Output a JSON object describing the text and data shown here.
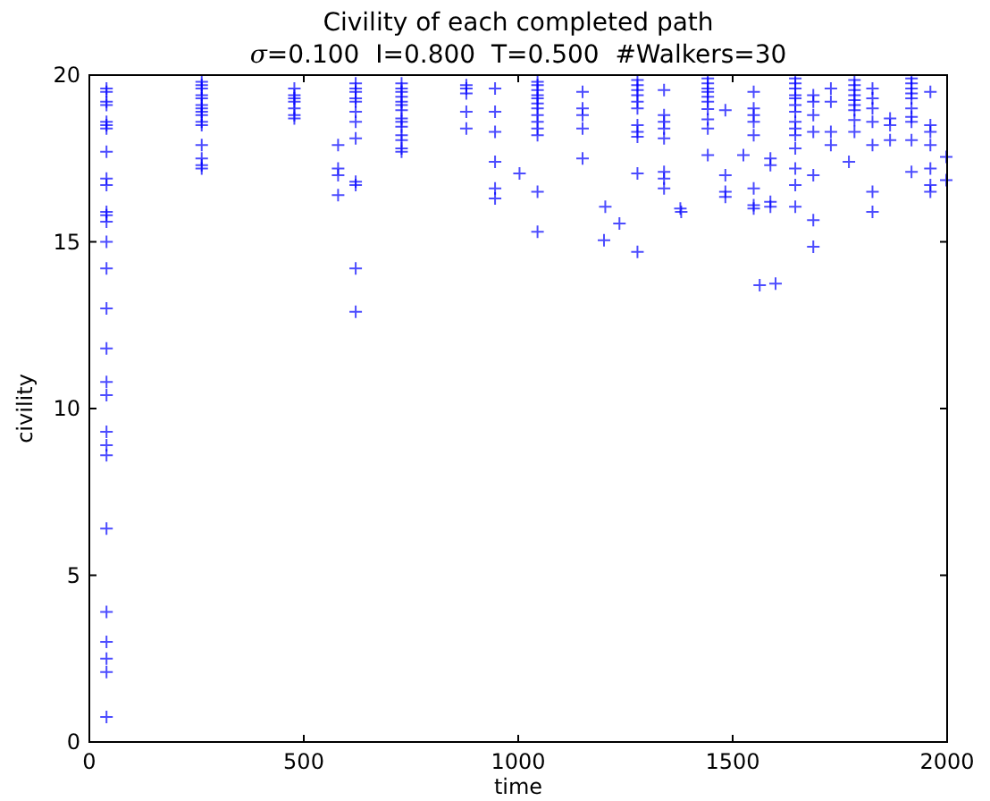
{
  "chart_data": {
    "type": "scatter",
    "title": "Civility of each completed path",
    "subtitle": "σ=0.100  I=0.800  T=0.500  #Walkers=30",
    "xlabel": "time",
    "ylabel": "civility",
    "xlim": [
      0,
      2000
    ],
    "xticks": [
      0,
      500,
      1000,
      1500,
      2000
    ],
    "ylim": [
      0,
      20
    ],
    "yticks": [
      0,
      5,
      10,
      15,
      20
    ],
    "grid": false,
    "marker": "cross",
    "series": [
      {
        "color": "#0000ff",
        "x": [
          40,
          40,
          40,
          40,
          40,
          40,
          40,
          40,
          40,
          40,
          40,
          40,
          40,
          40,
          40,
          40,
          40,
          40,
          40,
          40,
          40,
          40,
          40,
          40,
          40,
          40,
          40,
          40,
          262,
          262,
          262,
          262,
          262,
          262,
          262,
          262,
          262,
          262,
          262,
          262,
          262,
          262,
          262,
          478,
          478,
          478,
          478,
          478,
          478,
          478,
          580,
          580,
          580,
          580,
          621,
          621,
          621,
          621,
          621,
          621,
          621,
          621,
          621,
          621,
          621,
          621,
          728,
          728,
          728,
          728,
          728,
          728,
          728,
          728,
          728,
          728,
          728,
          728,
          728,
          728,
          879,
          879,
          879,
          879,
          879,
          946,
          946,
          946,
          946,
          946,
          946,
          1003,
          1045,
          1045,
          1045,
          1045,
          1045,
          1045,
          1045,
          1045,
          1045,
          1045,
          1045,
          1045,
          1045,
          1150,
          1150,
          1150,
          1150,
          1150,
          1203,
          1200,
          1236,
          1278,
          1278,
          1278,
          1278,
          1278,
          1278,
          1278,
          1278,
          1278,
          1278,
          1278,
          1340,
          1340,
          1340,
          1340,
          1340,
          1340,
          1340,
          1340,
          1378,
          1380,
          1442,
          1442,
          1442,
          1442,
          1442,
          1442,
          1442,
          1442,
          1442,
          1442,
          1483,
          1483,
          1483,
          1483,
          1525,
          1549,
          1549,
          1549,
          1549,
          1549,
          1549,
          1549,
          1549,
          1563,
          1600,
          1588,
          1588,
          1588,
          1588,
          1646,
          1646,
          1646,
          1646,
          1646,
          1646,
          1646,
          1646,
          1646,
          1646,
          1646,
          1646,
          1646,
          1646,
          1688,
          1688,
          1688,
          1688,
          1688,
          1688,
          1688,
          1729,
          1729,
          1729,
          1729,
          1771,
          1784,
          1784,
          1784,
          1784,
          1784,
          1784,
          1784,
          1784,
          1784,
          1826,
          1826,
          1826,
          1826,
          1826,
          1826,
          1826,
          1867,
          1867,
          1867,
          1917,
          1917,
          1917,
          1917,
          1917,
          1917,
          1917,
          1917,
          1917,
          1917,
          1961,
          1961,
          1961,
          1961,
          1961,
          1961,
          1961,
          1998,
          1998
        ],
        "values": [
          19.6,
          19.5,
          19.2,
          19.1,
          18.6,
          18.5,
          18.4,
          17.7,
          16.9,
          16.7,
          15.9,
          15.8,
          15.6,
          15.0,
          14.2,
          13.0,
          11.8,
          10.8,
          10.4,
          9.3,
          8.9,
          8.6,
          6.4,
          3.9,
          3.0,
          2.5,
          2.1,
          0.75,
          19.8,
          19.7,
          19.6,
          19.4,
          19.3,
          19.1,
          19.0,
          18.9,
          18.8,
          18.6,
          18.5,
          17.9,
          17.5,
          17.3,
          17.2,
          19.6,
          19.4,
          19.3,
          19.2,
          19.0,
          18.8,
          18.7,
          17.9,
          17.2,
          17.0,
          16.4,
          19.75,
          19.6,
          19.5,
          19.3,
          19.2,
          18.9,
          18.6,
          18.1,
          16.8,
          16.7,
          14.2,
          12.9,
          19.75,
          19.6,
          19.5,
          19.35,
          19.2,
          19.1,
          18.95,
          18.7,
          18.6,
          18.45,
          18.2,
          18.05,
          17.8,
          17.7,
          19.7,
          19.6,
          19.45,
          18.9,
          18.4,
          19.6,
          18.9,
          18.3,
          17.4,
          16.6,
          16.3,
          17.05,
          19.8,
          19.7,
          19.55,
          19.4,
          19.3,
          19.15,
          19.0,
          18.8,
          18.6,
          18.4,
          18.2,
          16.5,
          15.3,
          19.5,
          19.0,
          18.8,
          18.4,
          17.5,
          16.05,
          15.05,
          15.55,
          19.85,
          19.7,
          19.55,
          19.4,
          19.2,
          19.0,
          18.5,
          18.3,
          18.15,
          17.05,
          14.7,
          19.55,
          18.8,
          18.6,
          18.4,
          18.1,
          17.1,
          16.9,
          16.6,
          16.0,
          15.9,
          19.9,
          19.75,
          19.6,
          19.5,
          19.35,
          19.2,
          18.98,
          18.67,
          18.4,
          17.6,
          18.95,
          17.0,
          16.5,
          16.35,
          17.6,
          19.5,
          19.0,
          18.8,
          18.6,
          18.2,
          16.6,
          16.1,
          16.0,
          13.7,
          13.75,
          17.5,
          17.3,
          16.2,
          16.05,
          19.9,
          19.75,
          19.6,
          19.4,
          19.3,
          19.1,
          18.9,
          18.6,
          18.4,
          18.2,
          17.8,
          17.2,
          16.7,
          16.05,
          19.4,
          19.2,
          18.8,
          18.3,
          17.0,
          15.65,
          14.85,
          19.6,
          19.2,
          18.3,
          17.9,
          17.4,
          19.85,
          19.7,
          19.55,
          19.4,
          19.25,
          19.1,
          18.95,
          18.65,
          18.3,
          19.6,
          19.3,
          19.0,
          18.6,
          17.9,
          16.5,
          15.9,
          18.7,
          18.5,
          18.05,
          19.9,
          19.75,
          19.6,
          19.45,
          19.3,
          19.0,
          18.75,
          18.6,
          18.05,
          17.1,
          19.5,
          18.5,
          18.3,
          17.9,
          17.2,
          16.7,
          16.5,
          17.55,
          16.85
        ]
      }
    ]
  }
}
